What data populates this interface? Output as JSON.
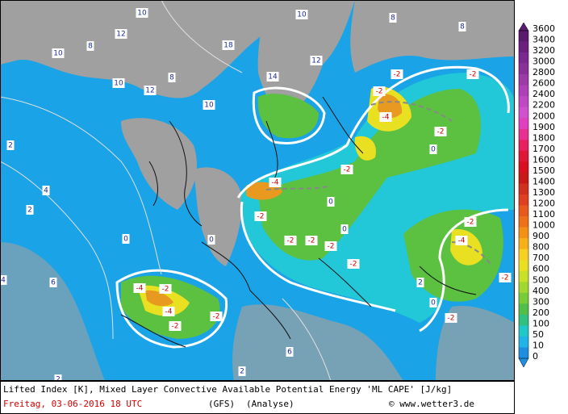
{
  "legend": {
    "levels": [
      "3600",
      "3400",
      "3200",
      "3000",
      "2800",
      "2600",
      "2400",
      "2200",
      "2000",
      "1900",
      "1800",
      "1700",
      "1600",
      "1500",
      "1400",
      "1300",
      "1200",
      "1100",
      "1000",
      "900",
      "800",
      "700",
      "600",
      "500",
      "400",
      "300",
      "200",
      "100",
      "50",
      "10",
      "0"
    ],
    "colors": [
      "#5a1a6e",
      "#6b2080",
      "#7b2890",
      "#8a3199",
      "#9c3aa8",
      "#b040b8",
      "#c048c4",
      "#d050d0",
      "#e040c0",
      "#e83090",
      "#e82060",
      "#e01838",
      "#d81020",
      "#c81818",
      "#d03020",
      "#e04020",
      "#e85a1c",
      "#f07018",
      "#f59016",
      "#f8b018",
      "#f8d020",
      "#e8e020",
      "#c8e028",
      "#a0d830",
      "#78cc38",
      "#50c048",
      "#30c080",
      "#20c8c8",
      "#20b4e8",
      "#1e8ee0"
    ]
  },
  "footer": {
    "description": "Lifted Index [K], Mixed Layer Convective Available Potential Energy 'ML CAPE' [J/kg]",
    "date": "Freitag, 03-06-2016  18 UTC",
    "model": "(GFS)",
    "run": "(Analyse)",
    "source": "© www.wetter3.de"
  },
  "map_labels": [
    "10",
    "12",
    "10",
    "8",
    "8",
    "10",
    "12",
    "10",
    "18",
    "10",
    "12",
    "14",
    "8",
    "8",
    "-2",
    "-2",
    "-2",
    "-4",
    "-2",
    "0",
    "-2",
    "-4",
    "-2",
    "-2",
    "-2",
    "-2",
    "-2",
    "-4",
    "-2",
    "-2",
    "-4",
    "-2",
    "-4",
    "-2",
    "-2",
    "0",
    "0",
    "2",
    "4",
    "2",
    "4",
    "6",
    "2",
    "2",
    "6",
    "0",
    "0",
    "2",
    "-2",
    "0"
  ]
}
